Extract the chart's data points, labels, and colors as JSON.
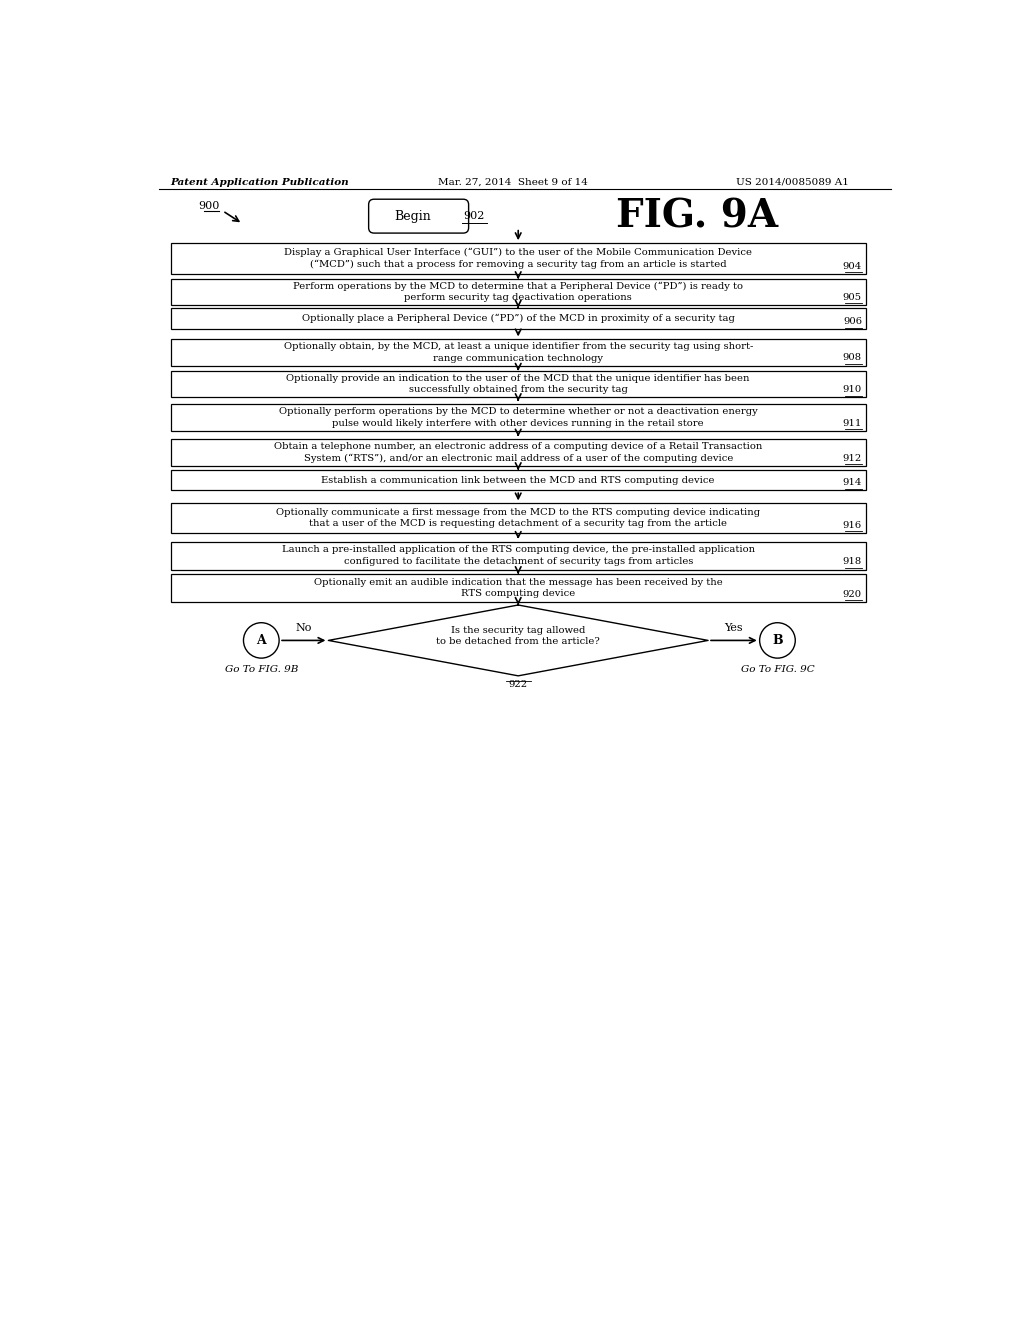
{
  "header_left": "Patent Application Publication",
  "header_mid": "Mar. 27, 2014  Sheet 9 of 14",
  "header_right": "US 2014/0085089 A1",
  "fig_label": "FIG. 9A",
  "start_label": "Begin",
  "start_num": "902",
  "flow_num_900": "900",
  "boxes": [
    {
      "id": "904",
      "lines": [
        "Display a Graphical User Interface (“GUI”) to the user of the Mobile Communication Device",
        "(“MCD”) such that a process for removing a security tag from an article is started"
      ],
      "num": "904"
    },
    {
      "id": "905",
      "lines": [
        "Perform operations by the MCD to determine that a Peripheral Device (“PD”) is ready to",
        "perform security tag deactivation operations"
      ],
      "num": "905"
    },
    {
      "id": "906",
      "lines": [
        "Optionally place a Peripheral Device (“PD”) of the MCD in proximity of a security tag"
      ],
      "num": "906"
    },
    {
      "id": "908",
      "lines": [
        "Optionally obtain, by the MCD, at least a unique identifier from the security tag using short-",
        "range communication technology"
      ],
      "num": "908"
    },
    {
      "id": "910",
      "lines": [
        "Optionally provide an indication to the user of the MCD that the unique identifier has been",
        "successfully obtained from the security tag"
      ],
      "num": "910"
    },
    {
      "id": "911",
      "lines": [
        "Optionally perform operations by the MCD to determine whether or not a deactivation energy",
        "pulse would likely interfere with other devices running in the retail store"
      ],
      "num": "911"
    },
    {
      "id": "912",
      "lines": [
        "Obtain a telephone number, an electronic address of a computing device of a Retail Transaction",
        "System (“RTS”), and/or an electronic mail address of a user of the computing device"
      ],
      "num": "912"
    },
    {
      "id": "914",
      "lines": [
        "Establish a communication link between the MCD and RTS computing device"
      ],
      "num": "914"
    },
    {
      "id": "916",
      "lines": [
        "Optionally communicate a first message from the MCD to the RTS computing device indicating",
        "that a user of the MCD is requesting detachment of a security tag from the article"
      ],
      "num": "916"
    },
    {
      "id": "918",
      "lines": [
        "Launch a pre-installed application of the RTS computing device, the pre-installed application",
        "configured to facilitate the detachment of security tags from articles"
      ],
      "num": "918"
    },
    {
      "id": "920",
      "lines": [
        "Optionally emit an audible indication that the message has been received by the",
        "RTS computing device"
      ],
      "num": "920"
    }
  ],
  "diamond": {
    "text": [
      "Is the security tag allowed",
      "to be detached from the article?"
    ],
    "num": "922",
    "no_label": "No",
    "yes_label": "Yes",
    "left_circle": "A",
    "right_circle": "B",
    "left_goto": "Go To FIG. 9B",
    "right_goto": "Go To FIG. 9C"
  },
  "bg_color": "#ffffff",
  "box_edge_color": "#000000",
  "text_color": "#000000",
  "arrow_color": "#000000"
}
